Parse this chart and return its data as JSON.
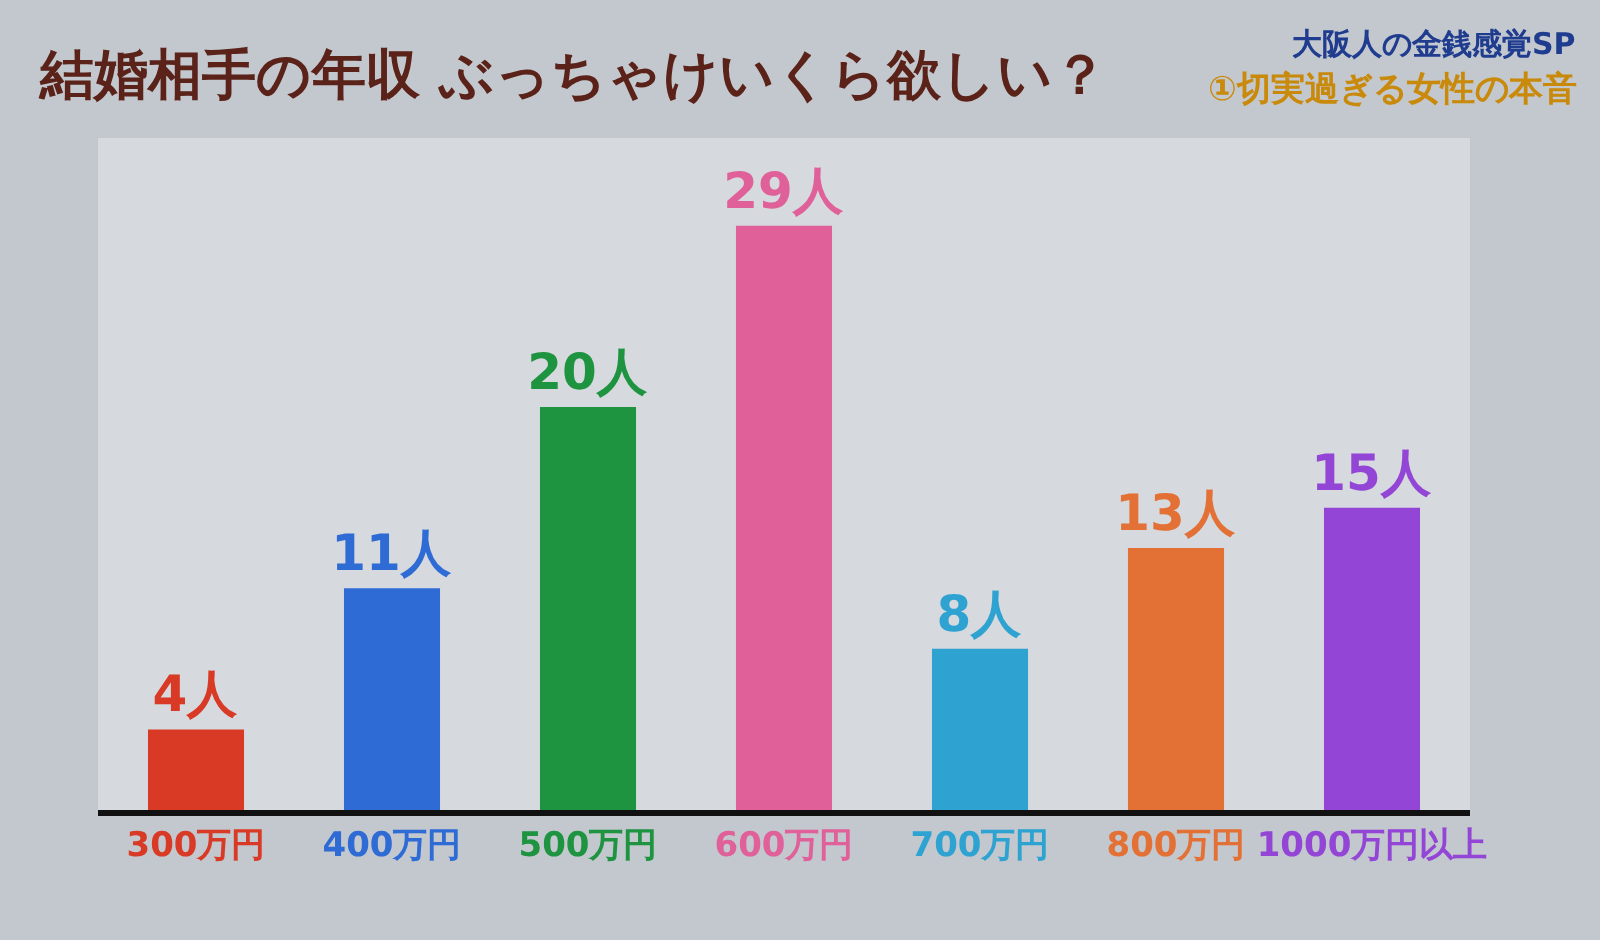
{
  "chart_data": {
    "type": "bar",
    "title": "結婚相手の年収 ぶっちゃけいくら欲しい？",
    "annotations": [
      "大阪人の金銭感覚SP",
      "①切実過ぎる女性の本音"
    ],
    "categories": [
      "300万円",
      "400万円",
      "500万円",
      "600万円",
      "700万円",
      "800万円",
      "1000万円以上"
    ],
    "values": [
      4,
      11,
      20,
      29,
      8,
      13,
      15
    ],
    "colors": [
      "#d93a26",
      "#2e6bd4",
      "#1e9440",
      "#e0609a",
      "#2ea3d2",
      "#e37035",
      "#9346d6"
    ],
    "value_labels": [
      "4人",
      "11人",
      "20人",
      "29人",
      "8人",
      "13人",
      "15人"
    ]
  }
}
